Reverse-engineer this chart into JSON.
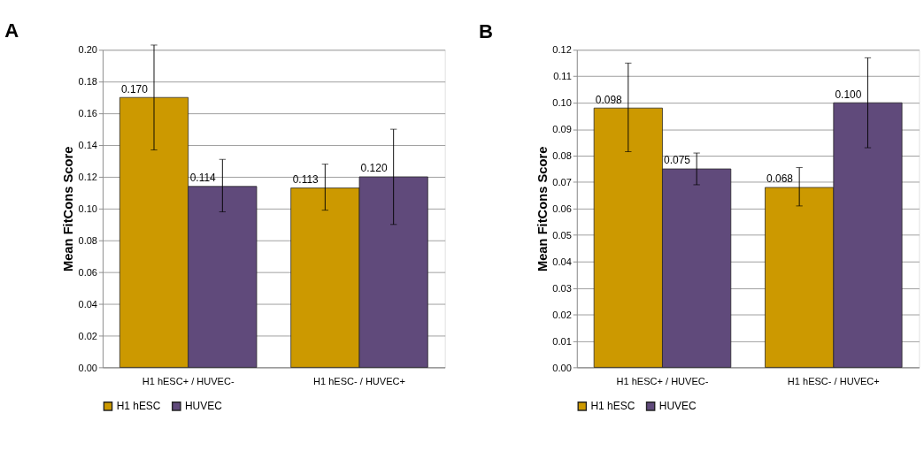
{
  "chart_data": [
    {
      "type": "bar",
      "title": "A",
      "ylabel": "Mean FitCons Score",
      "categories": [
        "H1 hESC+ / HUVEC-",
        "H1 hESC- / HUVEC+"
      ],
      "ylim": [
        0,
        0.2
      ],
      "yticks": [
        {
          "value": 0,
          "label": "0.00"
        },
        {
          "value": 0.02,
          "label": "0.02"
        },
        {
          "value": 0.04,
          "label": "0.04"
        },
        {
          "value": 0.06,
          "label": "0.06"
        },
        {
          "value": 0.08,
          "label": "0.08"
        },
        {
          "value": 0.1,
          "label": "0.10"
        },
        {
          "value": 0.12,
          "label": "0.12"
        },
        {
          "value": 0.14,
          "label": "0.14"
        },
        {
          "value": 0.16,
          "label": "0.16"
        },
        {
          "value": 0.18,
          "label": "0.18"
        },
        {
          "value": 0.2,
          "label": "0.20"
        }
      ],
      "grid": "y",
      "legend": "bottom",
      "series": [
        {
          "name": "H1 hESC",
          "color": "#cc9900",
          "values": [
            0.17,
            0.113
          ],
          "errors": [
            [
              0.137,
              0.203
            ],
            [
              0.099,
              0.128
            ]
          ],
          "value_labels": [
            "0.170",
            "0.113"
          ]
        },
        {
          "name": "HUVEC",
          "color": "#604a7b",
          "values": [
            0.114,
            0.12
          ],
          "errors": [
            [
              0.098,
              0.131
            ],
            [
              0.09,
              0.15
            ]
          ],
          "value_labels": [
            "0.114",
            "0.120"
          ]
        }
      ]
    },
    {
      "type": "bar",
      "title": "B",
      "ylabel": "Mean FitCons Score",
      "categories": [
        "H1 hESC+ / HUVEC-",
        "H1 hESC- / HUVEC+"
      ],
      "ylim": [
        0,
        0.12
      ],
      "yticks": [
        {
          "value": 0,
          "label": "0.00"
        },
        {
          "value": 0.01,
          "label": "0.01"
        },
        {
          "value": 0.02,
          "label": "0.02"
        },
        {
          "value": 0.03,
          "label": "0.03"
        },
        {
          "value": 0.04,
          "label": "0.04"
        },
        {
          "value": 0.05,
          "label": "0.05"
        },
        {
          "value": 0.06,
          "label": "0.06"
        },
        {
          "value": 0.07,
          "label": "0.07"
        },
        {
          "value": 0.08,
          "label": "0.08"
        },
        {
          "value": 0.09,
          "label": "0.09"
        },
        {
          "value": 0.1,
          "label": "0.10"
        },
        {
          "value": 0.11,
          "label": "0.11"
        },
        {
          "value": 0.12,
          "label": "0.12"
        }
      ],
      "grid": "y",
      "legend": "bottom",
      "series": [
        {
          "name": "H1 hESC",
          "color": "#cc9900",
          "values": [
            0.098,
            0.068
          ],
          "errors": [
            [
              0.0815,
              0.115
            ],
            [
              0.061,
              0.0755
            ]
          ],
          "value_labels": [
            "0.098",
            "0.068"
          ]
        },
        {
          "name": "HUVEC",
          "color": "#604a7b",
          "values": [
            0.075,
            0.1
          ],
          "errors": [
            [
              0.069,
              0.081
            ],
            [
              0.083,
              0.117
            ]
          ],
          "value_labels": [
            "0.075",
            "0.100"
          ]
        }
      ]
    }
  ]
}
